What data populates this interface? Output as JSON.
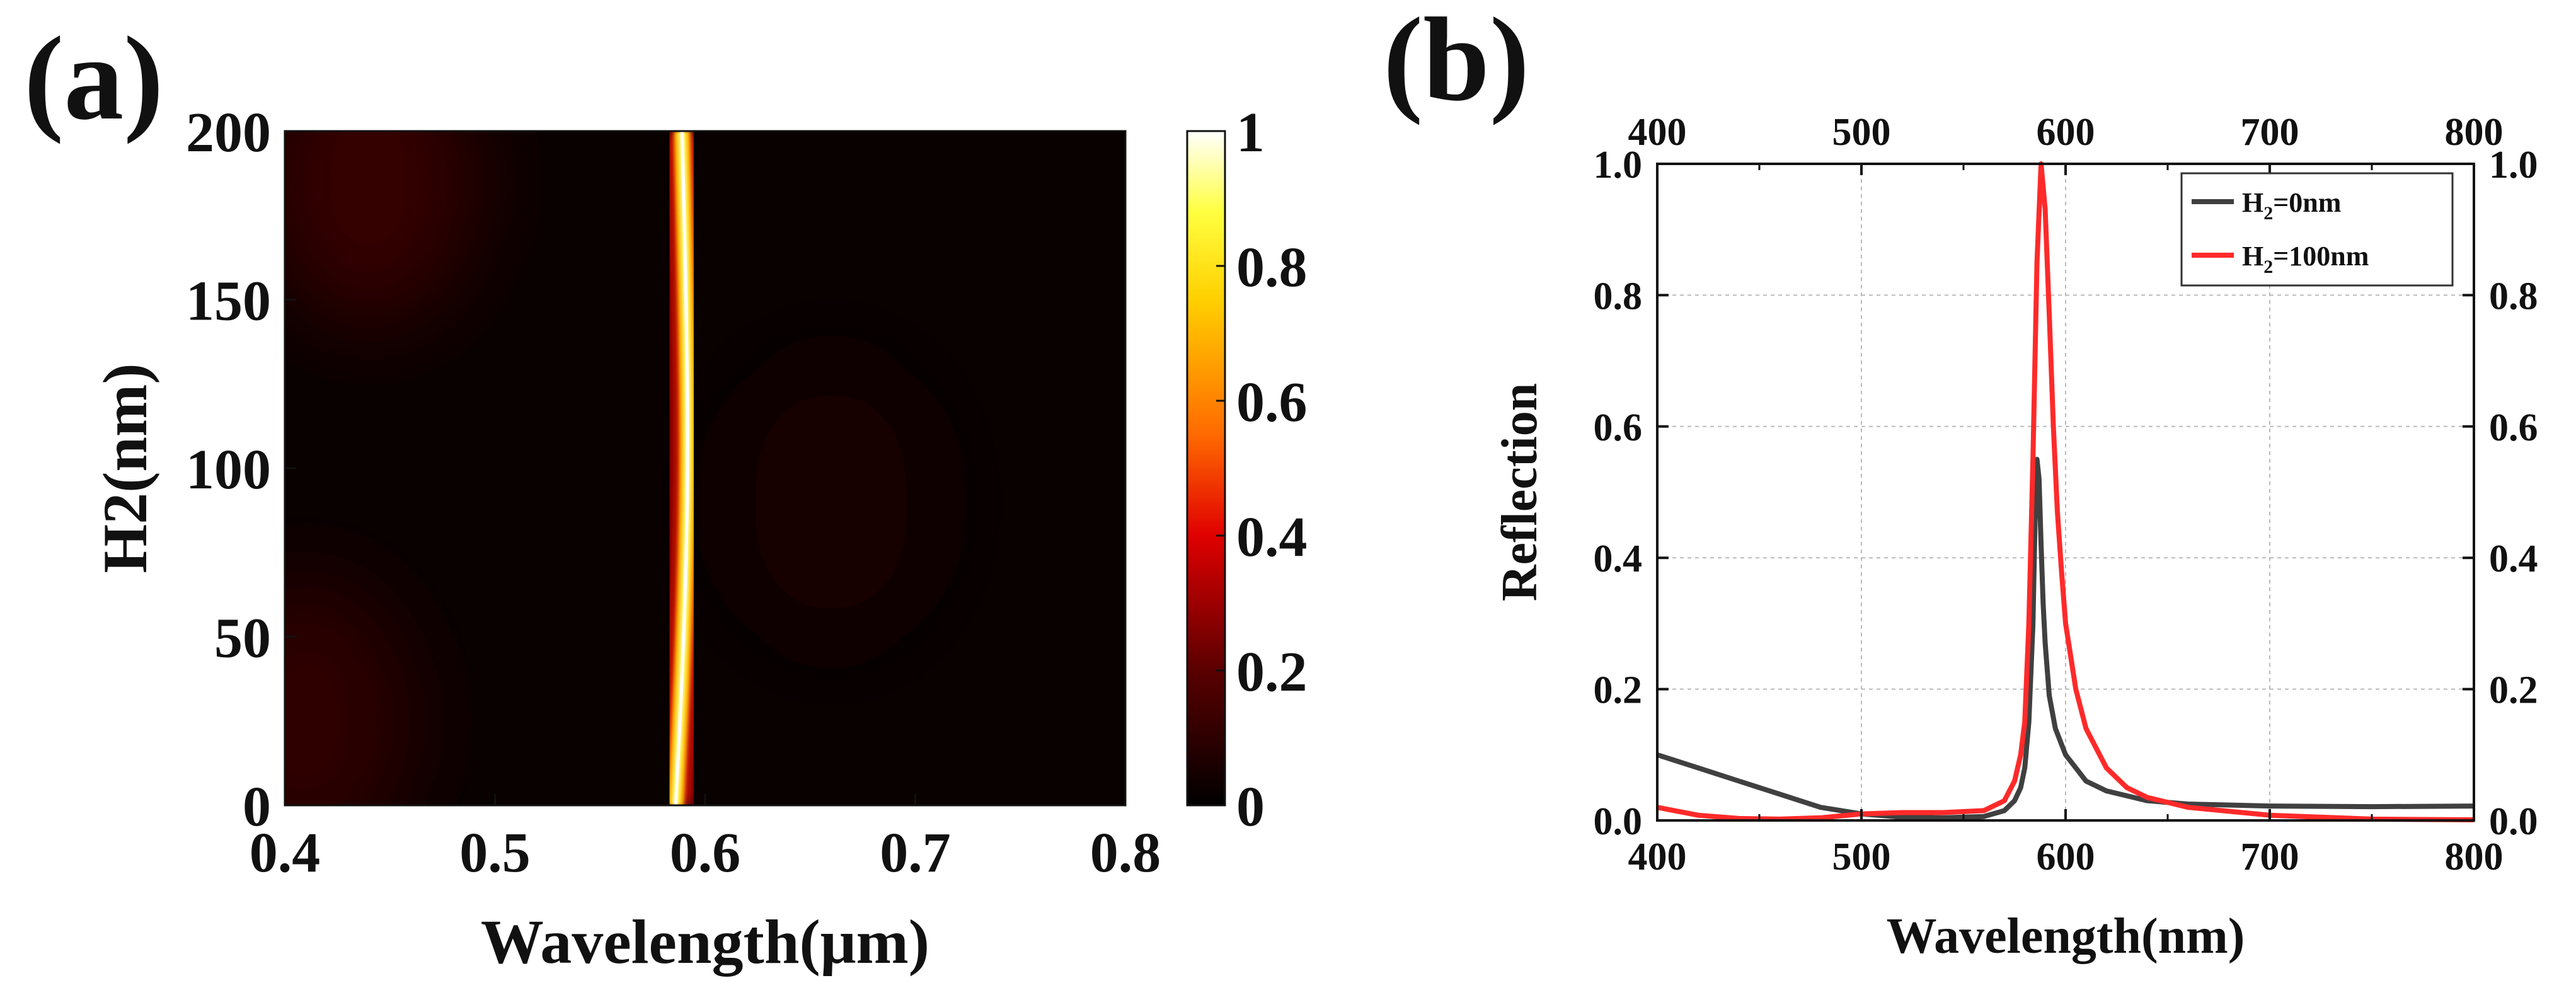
{
  "chart_data": [
    {
      "panel": "(a)",
      "type": "heatmap",
      "xlabel": "Wavelength(μm)",
      "ylabel": "H2(nm)",
      "xlim": [
        0.4,
        0.8
      ],
      "ylim": [
        0,
        200
      ],
      "xticks": [
        "0.4",
        "0.5",
        "0.6",
        "0.7",
        "0.8"
      ],
      "yticks": [
        "0",
        "50",
        "100",
        "150",
        "200"
      ],
      "colorbar": {
        "range": [
          0,
          1
        ],
        "ticks": [
          "0",
          "0.2",
          "0.4",
          "0.6",
          "0.8",
          "1"
        ],
        "colormap": "hot"
      },
      "resonance_center_um": [
        {
          "h2": 0,
          "wavelength": 0.586
        },
        {
          "h2": 50,
          "wavelength": 0.59
        },
        {
          "h2": 100,
          "wavelength": 0.592
        },
        {
          "h2": 150,
          "wavelength": 0.591
        },
        {
          "h2": 200,
          "wavelength": 0.589
        }
      ],
      "resonance_peak_value": 1.0,
      "background_value": 0.02,
      "weak_lobes": [
        {
          "wavelength": 0.44,
          "h2": 185,
          "value": 0.12
        },
        {
          "wavelength": 0.41,
          "h2": 25,
          "value": 0.1
        },
        {
          "wavelength": 0.66,
          "h2": 90,
          "value": 0.05
        }
      ]
    },
    {
      "panel": "(b)",
      "type": "line",
      "xlabel": "Wavelength(nm)",
      "ylabel": "Reflection",
      "xlim": [
        400,
        800
      ],
      "ylim": [
        0,
        1
      ],
      "xticks": [
        "400",
        "500",
        "600",
        "700",
        "800"
      ],
      "yticks": [
        "0.0",
        "0.2",
        "0.4",
        "0.6",
        "0.8",
        "1.0"
      ],
      "grid": true,
      "legend_position": "top-right",
      "series": [
        {
          "name": "H₂=0nm",
          "name_main": "H",
          "name_sub": "2",
          "name_rest": "=0nm",
          "color": "#404040",
          "x": [
            400,
            420,
            440,
            460,
            480,
            500,
            520,
            540,
            560,
            570,
            575,
            578,
            580,
            582,
            584,
            585,
            586,
            587,
            588,
            589,
            590,
            592,
            595,
            600,
            605,
            610,
            620,
            640,
            660,
            700,
            750,
            800
          ],
          "y": [
            0.1,
            0.08,
            0.06,
            0.04,
            0.02,
            0.01,
            0.005,
            0.004,
            0.006,
            0.015,
            0.03,
            0.05,
            0.08,
            0.15,
            0.3,
            0.45,
            0.55,
            0.52,
            0.42,
            0.33,
            0.27,
            0.19,
            0.14,
            0.1,
            0.08,
            0.06,
            0.045,
            0.03,
            0.025,
            0.022,
            0.021,
            0.022
          ]
        },
        {
          "name": "H₂=100nm",
          "name_main": "H",
          "name_sub": "2",
          "name_rest": "=100nm",
          "color": "#ff2a2a",
          "x": [
            400,
            420,
            440,
            460,
            480,
            500,
            520,
            540,
            560,
            570,
            575,
            578,
            580,
            582,
            584,
            586,
            588,
            590,
            592,
            594,
            596,
            598,
            600,
            605,
            610,
            620,
            630,
            640,
            660,
            700,
            750,
            800
          ],
          "y": [
            0.02,
            0.008,
            0.003,
            0.002,
            0.004,
            0.01,
            0.012,
            0.012,
            0.015,
            0.03,
            0.06,
            0.1,
            0.15,
            0.3,
            0.55,
            0.85,
            1.0,
            0.93,
            0.77,
            0.6,
            0.47,
            0.38,
            0.3,
            0.2,
            0.14,
            0.08,
            0.05,
            0.035,
            0.02,
            0.008,
            0.002,
            0.001
          ]
        }
      ]
    }
  ]
}
